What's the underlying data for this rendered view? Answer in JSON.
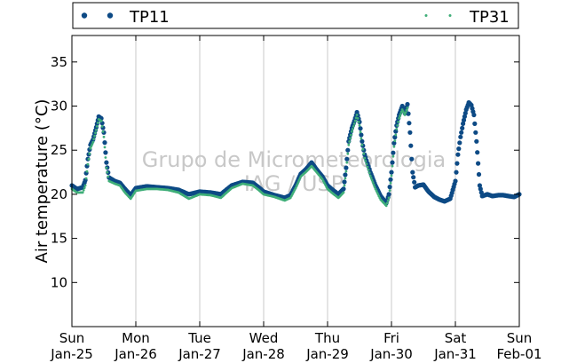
{
  "chart_data": {
    "type": "scatter",
    "ylabel": "Air temperature (°C)",
    "ylim": [
      5,
      38
    ],
    "yticks": [
      10,
      15,
      20,
      25,
      30,
      35
    ],
    "x_range": [
      "2015-01-25",
      "2015-02-01"
    ],
    "xtick_days": [
      "Sun",
      "Mon",
      "Tue",
      "Wed",
      "Thu",
      "Fri",
      "Sat",
      "Sun"
    ],
    "xtick_dates": [
      "Jan-25",
      "Jan-26",
      "Jan-27",
      "Jan-28",
      "Jan-29",
      "Jan-30",
      "Jan-31",
      "Feb-01"
    ],
    "grid": "vertical at day boundaries",
    "legend_position": "top, outside plot",
    "watermark": [
      "Grupo de Micrometeorologia",
      "IAG / USP"
    ],
    "series": [
      {
        "name": "TP11",
        "color": "#0d4a85",
        "marker": "circle",
        "points": [
          [
            0.0,
            21.0
          ],
          [
            0.08,
            20.6
          ],
          [
            0.17,
            20.8
          ],
          [
            0.21,
            21.6
          ],
          [
            0.25,
            24.0
          ],
          [
            0.29,
            25.6
          ],
          [
            0.33,
            26.2
          ],
          [
            0.38,
            27.6
          ],
          [
            0.42,
            28.8
          ],
          [
            0.46,
            28.6
          ],
          [
            0.5,
            27.0
          ],
          [
            0.54,
            23.6
          ],
          [
            0.58,
            21.9
          ],
          [
            0.67,
            21.5
          ],
          [
            0.75,
            21.3
          ],
          [
            0.83,
            20.6
          ],
          [
            0.92,
            19.9
          ],
          [
            1.0,
            20.7
          ],
          [
            1.17,
            20.9
          ],
          [
            1.33,
            20.8
          ],
          [
            1.5,
            20.7
          ],
          [
            1.67,
            20.5
          ],
          [
            1.83,
            20.0
          ],
          [
            2.0,
            20.3
          ],
          [
            2.17,
            20.2
          ],
          [
            2.33,
            20.0
          ],
          [
            2.5,
            21.0
          ],
          [
            2.67,
            21.4
          ],
          [
            2.83,
            21.3
          ],
          [
            2.92,
            20.8
          ],
          [
            3.0,
            20.3
          ],
          [
            3.17,
            19.9
          ],
          [
            3.33,
            19.6
          ],
          [
            3.42,
            19.9
          ],
          [
            3.5,
            21.0
          ],
          [
            3.58,
            22.3
          ],
          [
            3.67,
            22.9
          ],
          [
            3.75,
            23.6
          ],
          [
            3.83,
            22.8
          ],
          [
            3.92,
            22.0
          ],
          [
            4.0,
            21.0
          ],
          [
            4.08,
            20.5
          ],
          [
            4.17,
            20.0
          ],
          [
            4.25,
            20.6
          ],
          [
            4.29,
            23.0
          ],
          [
            4.33,
            26.0
          ],
          [
            4.38,
            27.5
          ],
          [
            4.42,
            28.3
          ],
          [
            4.46,
            29.3
          ],
          [
            4.5,
            28.2
          ],
          [
            4.54,
            26.0
          ],
          [
            4.58,
            24.5
          ],
          [
            4.67,
            22.5
          ],
          [
            4.75,
            21.0
          ],
          [
            4.83,
            19.8
          ],
          [
            4.92,
            19.0
          ],
          [
            4.96,
            20.0
          ],
          [
            5.0,
            22.5
          ],
          [
            5.04,
            25.8
          ],
          [
            5.08,
            27.8
          ],
          [
            5.12,
            29.0
          ],
          [
            5.17,
            30.0
          ],
          [
            5.21,
            29.2
          ],
          [
            5.25,
            30.2
          ],
          [
            5.29,
            27.0
          ],
          [
            5.33,
            22.5
          ],
          [
            5.37,
            20.8
          ],
          [
            5.42,
            21.0
          ],
          [
            5.5,
            21.1
          ],
          [
            5.58,
            20.3
          ],
          [
            5.67,
            19.7
          ],
          [
            5.75,
            19.4
          ],
          [
            5.83,
            19.2
          ],
          [
            5.92,
            19.5
          ],
          [
            6.0,
            21.5
          ],
          [
            6.04,
            24.5
          ],
          [
            6.08,
            26.5
          ],
          [
            6.12,
            28.0
          ],
          [
            6.17,
            29.6
          ],
          [
            6.21,
            30.4
          ],
          [
            6.25,
            30.1
          ],
          [
            6.29,
            29.0
          ],
          [
            6.33,
            26.0
          ],
          [
            6.38,
            21.0
          ],
          [
            6.42,
            19.8
          ],
          [
            6.5,
            20.0
          ],
          [
            6.58,
            19.8
          ],
          [
            6.67,
            19.9
          ],
          [
            6.75,
            19.9
          ],
          [
            6.83,
            19.8
          ],
          [
            6.92,
            19.7
          ],
          [
            7.0,
            20.0
          ]
        ]
      },
      {
        "name": "TP31",
        "color": "#3fae78",
        "marker": "point",
        "points": [
          [
            0.0,
            20.6
          ],
          [
            0.08,
            20.2
          ],
          [
            0.17,
            20.2
          ],
          [
            0.21,
            21.0
          ],
          [
            0.25,
            23.4
          ],
          [
            0.29,
            25.2
          ],
          [
            0.33,
            25.9
          ],
          [
            0.38,
            27.3
          ],
          [
            0.42,
            28.5
          ],
          [
            0.46,
            28.3
          ],
          [
            0.5,
            26.5
          ],
          [
            0.54,
            23.0
          ],
          [
            0.58,
            21.5
          ],
          [
            0.67,
            21.2
          ],
          [
            0.75,
            21.0
          ],
          [
            0.83,
            20.2
          ],
          [
            0.92,
            19.5
          ],
          [
            1.0,
            20.4
          ],
          [
            1.17,
            20.6
          ],
          [
            1.33,
            20.6
          ],
          [
            1.5,
            20.5
          ],
          [
            1.67,
            20.2
          ],
          [
            1.83,
            19.5
          ],
          [
            2.0,
            20.0
          ],
          [
            2.17,
            19.9
          ],
          [
            2.33,
            19.6
          ],
          [
            2.5,
            20.7
          ],
          [
            2.67,
            21.2
          ],
          [
            2.83,
            21.0
          ],
          [
            2.92,
            20.5
          ],
          [
            3.0,
            20.0
          ],
          [
            3.17,
            19.7
          ],
          [
            3.33,
            19.3
          ],
          [
            3.42,
            19.6
          ],
          [
            3.5,
            20.7
          ],
          [
            3.58,
            22.0
          ],
          [
            3.67,
            22.6
          ],
          [
            3.75,
            23.2
          ],
          [
            3.83,
            22.5
          ],
          [
            3.92,
            21.7
          ],
          [
            4.0,
            20.6
          ],
          [
            4.08,
            20.1
          ],
          [
            4.17,
            19.6
          ],
          [
            4.25,
            20.2
          ],
          [
            4.29,
            22.6
          ],
          [
            4.33,
            25.6
          ],
          [
            4.38,
            27.1
          ],
          [
            4.42,
            28.0
          ],
          [
            4.46,
            29.0
          ],
          [
            4.5,
            27.8
          ],
          [
            4.54,
            25.6
          ],
          [
            4.58,
            24.1
          ],
          [
            4.67,
            22.1
          ],
          [
            4.75,
            20.6
          ],
          [
            4.83,
            19.4
          ],
          [
            4.92,
            18.7
          ],
          [
            4.96,
            19.6
          ],
          [
            5.0,
            22.1
          ],
          [
            5.04,
            25.4
          ],
          [
            5.08,
            27.4
          ],
          [
            5.12,
            28.6
          ],
          [
            5.17,
            29.6
          ],
          [
            5.21,
            29.0
          ],
          [
            5.25,
            29.8
          ]
        ]
      }
    ]
  }
}
